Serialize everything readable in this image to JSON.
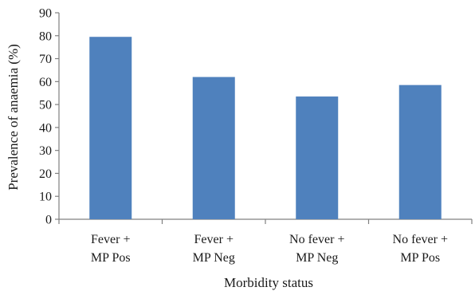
{
  "chart_data": {
    "type": "bar",
    "categories": [
      [
        "Fever +",
        "MP Pos"
      ],
      [
        "Fever +",
        "MP Neg"
      ],
      [
        "No fever +",
        "MP Neg"
      ],
      [
        "No fever +",
        "MP Pos"
      ]
    ],
    "values": [
      79.5,
      62,
      53.5,
      58.5
    ],
    "xlabel": "Morbidity status",
    "ylabel": "Prevalence of anaemia (%)",
    "ylim": [
      0,
      90
    ],
    "yticks": [
      0,
      10,
      20,
      30,
      40,
      50,
      60,
      70,
      80,
      90
    ],
    "grid": false,
    "legend": "none",
    "bar_color": "#4f81bd",
    "axis_color": "#808080"
  }
}
